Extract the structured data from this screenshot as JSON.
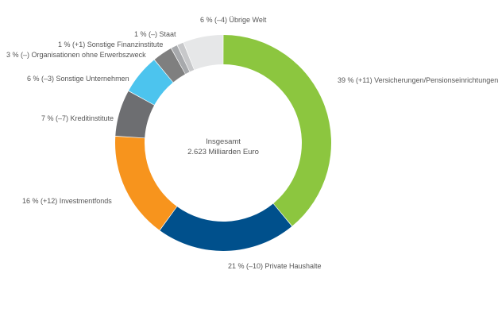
{
  "chart_data": {
    "type": "pie",
    "variant": "donut",
    "center_label": {
      "line1": "Insgesamt",
      "line2": "2.623 Milliarden Euro"
    },
    "slices": [
      {
        "name": "Versicherungen/Pensionseinrichtungen",
        "value": 39,
        "change": "+11",
        "label": "39 % (+11) Versicherungen/Pensionseinrichtungen",
        "color": "#8cc63f"
      },
      {
        "name": "Private Haushalte",
        "value": 21,
        "change": "–10",
        "label": "21 % (–10) Private Haushalte",
        "color": "#00508c"
      },
      {
        "name": "Investmentfonds",
        "value": 16,
        "change": "+12",
        "label": "16 % (+12) Investmentfonds",
        "color": "#f7941d"
      },
      {
        "name": "Kreditinstitute",
        "value": 7,
        "change": "–7",
        "label": "7 % (–7) Kreditinstitute",
        "color": "#6d6e71"
      },
      {
        "name": "Sonstige Unternehmen",
        "value": 6,
        "change": "–3",
        "label": "6 % (–3) Sonstige Unternehmen",
        "color": "#4cc4ee"
      },
      {
        "name": "Organisationen ohne Erwerbszweck",
        "value": 3,
        "change": "–",
        "label": "3 % (–) Organisationen ohne Erwerbszweck",
        "color": "#7f7f7f"
      },
      {
        "name": "Sonstige Finanzinstitute",
        "value": 1,
        "change": "+1",
        "label": "1 % (+1) Sonstige Finanzinstitute",
        "color": "#a7a9ac"
      },
      {
        "name": "Staat",
        "value": 1,
        "change": "–",
        "label": "1 % (–) Staat",
        "color": "#c7c8ca"
      },
      {
        "name": "Übrige Welt",
        "value": 6,
        "change": "–4",
        "label": "6 % (–4) Übrige Welt",
        "color": "#e6e7e8"
      }
    ]
  }
}
